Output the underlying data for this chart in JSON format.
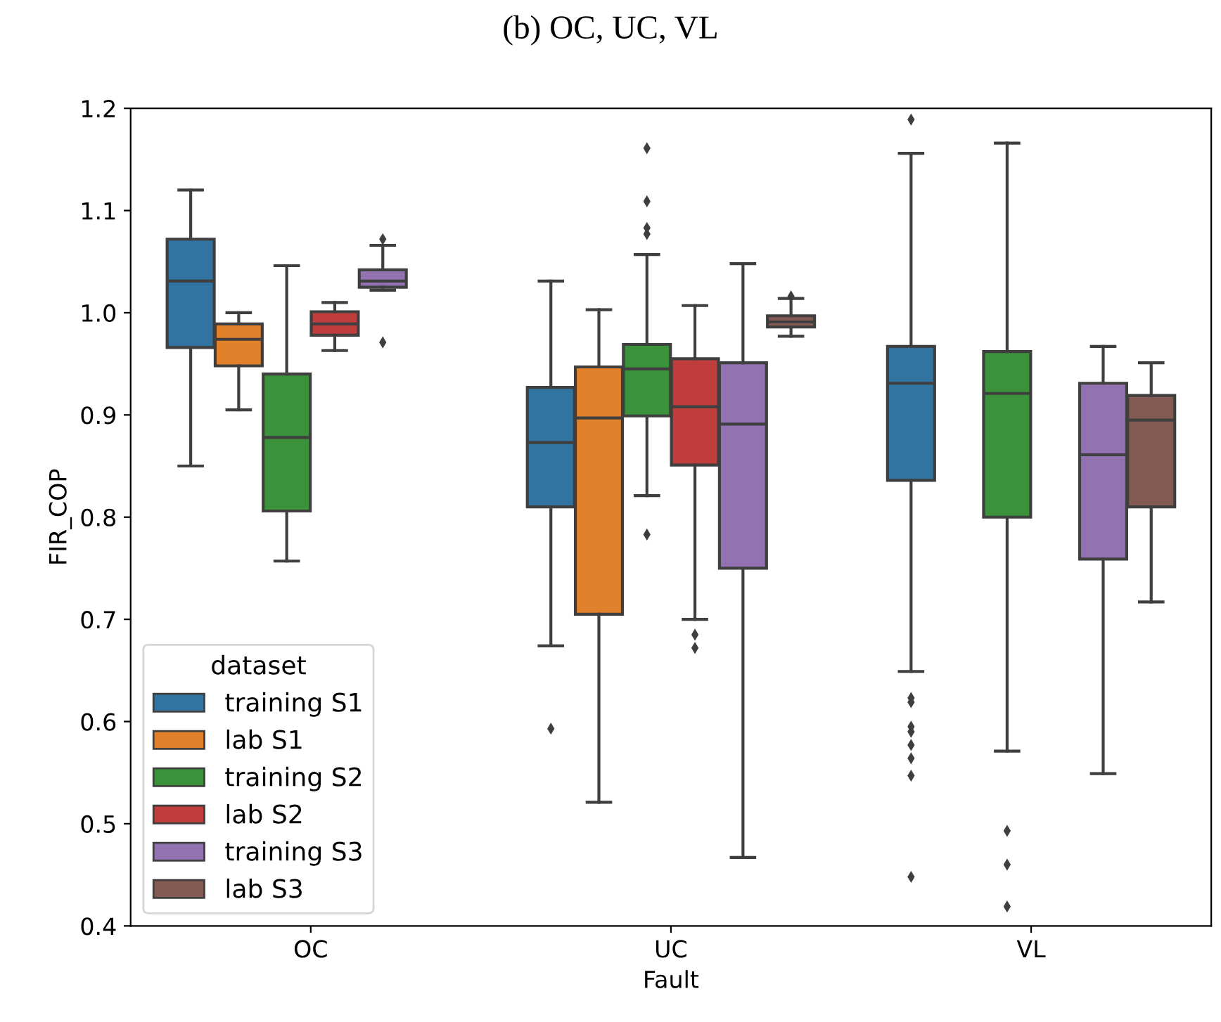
{
  "chart_data": {
    "type": "box",
    "title": "(b) OC, UC, VL",
    "xlabel": "Fault",
    "ylabel": "FIR_COP",
    "legend_title": "dataset",
    "legend": "bottom left",
    "grid": false,
    "categories": [
      "OC",
      "UC",
      "VL"
    ],
    "ylim": [
      0.4,
      1.2
    ],
    "yticks": [
      0.4,
      0.5,
      0.6,
      0.7,
      0.8,
      0.9,
      {
        "value": 1,
        "label": "1.0"
      },
      1.1,
      1.2
    ],
    "series": [
      {
        "name": "training S1",
        "color": "#3274a1",
        "boxes": [
          {
            "low": 0.85,
            "q1": 0.966,
            "median": 1.031,
            "q3": 1.072,
            "high": 1.12
          },
          {
            "low": 0.674,
            "q1": 0.81,
            "median": 0.873,
            "q3": 0.927,
            "high": 1.031,
            "outliers": [
              0.593
            ]
          },
          {
            "low": 0.649,
            "q1": 0.836,
            "median": 0.931,
            "q3": 0.967,
            "high": 1.156,
            "outliers": [
              1.189,
              0.623,
              0.619,
              0.595,
              0.59,
              0.577,
              0.564,
              0.547,
              0.448
            ]
          }
        ]
      },
      {
        "name": "lab S1",
        "color": "#e1812c",
        "boxes": [
          {
            "low": 0.905,
            "q1": 0.948,
            "median": 0.974,
            "q3": 0.989,
            "high": 1.0
          },
          {
            "low": 0.521,
            "q1": 0.705,
            "median": 0.897,
            "q3": 0.947,
            "high": 1.003
          },
          null
        ]
      },
      {
        "name": "training S2",
        "color": "#3a923a",
        "boxes": [
          {
            "low": 0.757,
            "q1": 0.806,
            "median": 0.878,
            "q3": 0.94,
            "high": 1.046
          },
          {
            "low": 0.821,
            "q1": 0.899,
            "median": 0.945,
            "q3": 0.969,
            "high": 1.057,
            "outliers": [
              1.161,
              1.109,
              1.083,
              1.077,
              0.783
            ]
          },
          {
            "low": 0.571,
            "q1": 0.8,
            "median": 0.921,
            "q3": 0.962,
            "high": 1.166,
            "outliers": [
              0.493,
              0.46,
              0.419
            ]
          }
        ]
      },
      {
        "name": "lab S2",
        "color": "#c03d3e",
        "boxes": [
          {
            "low": 0.963,
            "q1": 0.978,
            "median": 0.989,
            "q3": 1.001,
            "high": 1.01
          },
          {
            "low": 0.7,
            "q1": 0.851,
            "median": 0.908,
            "q3": 0.955,
            "high": 1.007,
            "outliers": [
              0.685,
              0.672
            ]
          },
          null
        ]
      },
      {
        "name": "training S3",
        "color": "#9372b2",
        "boxes": [
          {
            "low": 1.022,
            "q1": 1.025,
            "median": 1.031,
            "q3": 1.042,
            "high": 1.066,
            "outliers": [
              1.072,
              0.971
            ]
          },
          {
            "low": 0.467,
            "q1": 0.75,
            "median": 0.891,
            "q3": 0.951,
            "high": 1.048
          },
          {
            "low": 0.549,
            "q1": 0.759,
            "median": 0.861,
            "q3": 0.931,
            "high": 0.967
          }
        ]
      },
      {
        "name": "lab S3",
        "color": "#845b53",
        "boxes": [
          null,
          {
            "low": 0.977,
            "q1": 0.986,
            "median": 0.991,
            "q3": 0.997,
            "high": 1.014,
            "outliers": [
              1.016
            ]
          },
          {
            "low": 0.717,
            "q1": 0.81,
            "median": 0.895,
            "q3": 0.919,
            "high": 0.951
          }
        ]
      }
    ]
  }
}
